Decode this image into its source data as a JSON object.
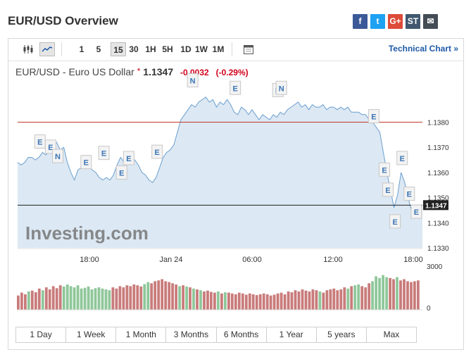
{
  "header": {
    "title": "EUR/USD Overview"
  },
  "share": [
    {
      "name": "facebook-icon",
      "glyph": "f",
      "color": "#3b5998"
    },
    {
      "name": "twitter-icon",
      "glyph": "t",
      "color": "#1da1f2"
    },
    {
      "name": "googleplus-icon",
      "glyph": "G+",
      "color": "#dd4b39"
    },
    {
      "name": "stocktwits-icon",
      "glyph": "ST",
      "color": "#40576f"
    },
    {
      "name": "email-icon",
      "glyph": "✉",
      "color": "#444c55"
    }
  ],
  "toolbar": {
    "intervals": [
      "1",
      "5",
      "15",
      "30",
      "1H",
      "5H",
      "1D",
      "1W",
      "1M"
    ],
    "active_interval": "15",
    "technical_link": "Technical Chart »"
  },
  "quote": {
    "name": "EUR/USD - Euro US Dollar",
    "marker": "*",
    "price": "1.1347",
    "change": "-0.0032",
    "change_pct": "(-0.29%)",
    "down_color": "#d0021b"
  },
  "chart_data": {
    "type": "area",
    "y_ticks": [
      "1.1380",
      "1.1370",
      "1.1360",
      "1.1350",
      "1.1340",
      "1.1330"
    ],
    "ylim": [
      1.133,
      1.1395
    ],
    "x_ticks": [
      "18:00",
      "Jan 24",
      "06:00",
      "12:00",
      "18:00"
    ],
    "last_price_label": "1.1347",
    "reference_line": 1.138,
    "watermark": "Investing.com",
    "series": [
      {
        "values": [
          1.1364,
          1.1363,
          1.1364,
          1.1366,
          1.1366,
          1.1365,
          1.1366,
          1.1368,
          1.1367,
          1.1369,
          1.1371,
          1.1372,
          1.1369,
          1.137,
          1.1364,
          1.136,
          1.1357,
          1.1361,
          1.1362,
          1.1364,
          1.1363,
          1.1361,
          1.136,
          1.1358,
          1.1357,
          1.1358,
          1.1357,
          1.1359,
          1.1363,
          1.1366,
          1.1364,
          1.1367,
          1.1366,
          1.1365,
          1.1363,
          1.136,
          1.1359,
          1.1357,
          1.1356,
          1.1358,
          1.1362,
          1.1366,
          1.1368,
          1.1369,
          1.1371,
          1.1376,
          1.1381,
          1.1383,
          1.1385,
          1.1387,
          1.1386,
          1.1388,
          1.1389,
          1.139,
          1.1388,
          1.1389,
          1.1386,
          1.1388,
          1.1387,
          1.1389,
          1.1387,
          1.1384,
          1.1383,
          1.1386,
          1.1385,
          1.1383,
          1.1385,
          1.1383,
          1.1381,
          1.1383,
          1.1382,
          1.1381,
          1.1383,
          1.1382,
          1.1384,
          1.1383,
          1.1385,
          1.1386,
          1.1387,
          1.1388,
          1.1386,
          1.1387,
          1.1385,
          1.1387,
          1.1386,
          1.1386,
          1.1387,
          1.1385,
          1.1386,
          1.1386,
          1.1385,
          1.1386,
          1.1385,
          1.1386,
          1.1384,
          1.1384,
          1.1384,
          1.1383,
          1.1383,
          1.1381,
          1.138,
          1.1378,
          1.1376,
          1.1368,
          1.136,
          1.1353,
          1.1346,
          1.1351,
          1.136,
          1.1356,
          1.135,
          1.1344,
          1.1342,
          1.1345,
          1.1347
        ]
      }
    ],
    "volume": {
      "y_ticks": [
        "3000",
        "0"
      ],
      "values": [
        1,
        1,
        1,
        0,
        1,
        1,
        1,
        0,
        1,
        1,
        1,
        1,
        1,
        0,
        0,
        0,
        0,
        0,
        0,
        0,
        0,
        0,
        0,
        0,
        0,
        0,
        0,
        1,
        1,
        1,
        1,
        1,
        1,
        1,
        1,
        1,
        0,
        0,
        1,
        1,
        1,
        1,
        1,
        1,
        1,
        1,
        0,
        1,
        0,
        1,
        0,
        1,
        0,
        1,
        1,
        1,
        1,
        0,
        1,
        0,
        1,
        1,
        1,
        1,
        1,
        1,
        1,
        1,
        1,
        1,
        1,
        1,
        1,
        1,
        1,
        1,
        1,
        1,
        1,
        1,
        1,
        1,
        1,
        1,
        1,
        1,
        0,
        1,
        1,
        1,
        1,
        1,
        1,
        1,
        0,
        1,
        0,
        0,
        1,
        1,
        1,
        0,
        0,
        0,
        0,
        0,
        1,
        1,
        0,
        1,
        1,
        1,
        1,
        1,
        1
      ],
      "heights": [
        0.35,
        0.42,
        0.38,
        0.45,
        0.47,
        0.43,
        0.52,
        0.48,
        0.55,
        0.5,
        0.58,
        0.53,
        0.6,
        0.57,
        0.62,
        0.58,
        0.55,
        0.6,
        0.52,
        0.54,
        0.57,
        0.5,
        0.53,
        0.55,
        0.52,
        0.5,
        0.48,
        0.55,
        0.52,
        0.58,
        0.55,
        0.6,
        0.58,
        0.62,
        0.6,
        0.57,
        0.63,
        0.68,
        0.65,
        0.7,
        0.72,
        0.75,
        0.7,
        0.68,
        0.65,
        0.62,
        0.58,
        0.6,
        0.57,
        0.55,
        0.52,
        0.5,
        0.48,
        0.45,
        0.47,
        0.44,
        0.42,
        0.45,
        0.4,
        0.43,
        0.42,
        0.4,
        0.38,
        0.42,
        0.4,
        0.37,
        0.4,
        0.38,
        0.36,
        0.38,
        0.4,
        0.38,
        0.35,
        0.37,
        0.4,
        0.42,
        0.38,
        0.45,
        0.43,
        0.48,
        0.45,
        0.5,
        0.47,
        0.45,
        0.5,
        0.48,
        0.45,
        0.42,
        0.48,
        0.5,
        0.52,
        0.48,
        0.5,
        0.55,
        0.52,
        0.58,
        0.6,
        0.62,
        0.58,
        0.55,
        0.65,
        0.7,
        0.82,
        0.78,
        0.85,
        0.8,
        0.78,
        0.75,
        0.8,
        0.72,
        0.75,
        0.7,
        0.68,
        0.7,
        0.72
      ]
    },
    "markers": [
      {
        "label": "E",
        "i": 6,
        "dy": -22
      },
      {
        "label": "E",
        "i": 9,
        "dy": -4
      },
      {
        "label": "N",
        "i": 11,
        "dy": 20
      },
      {
        "label": "E",
        "i": 19,
        "dy": 0
      },
      {
        "label": "E",
        "i": 24,
        "dy": -38
      },
      {
        "label": "E",
        "i": 29,
        "dy": 22
      },
      {
        "label": "E",
        "i": 31,
        "dy": 5
      },
      {
        "label": "E",
        "i": 39,
        "dy": -36
      },
      {
        "label": "N",
        "i": 49,
        "dy": -34
      },
      {
        "label": "E",
        "i": 61,
        "dy": -34
      },
      {
        "label": "N",
        "i": 73,
        "dy": -38
      },
      {
        "label": "N",
        "i": 74,
        "dy": -34
      },
      {
        "label": "E",
        "i": 100,
        "dy": -8
      },
      {
        "label": "E",
        "i": 103,
        "dy": 25
      },
      {
        "label": "E",
        "i": 104,
        "dy": 25
      },
      {
        "label": "E",
        "i": 106,
        "dy": 20
      },
      {
        "label": "E",
        "i": 108,
        "dy": -20
      },
      {
        "label": "E",
        "i": 110,
        "dy": -5
      },
      {
        "label": "E",
        "i": 112,
        "dy": -8
      }
    ]
  },
  "ranges": [
    "1 Day",
    "1 Week",
    "1 Month",
    "3 Months",
    "6 Months",
    "1 Year",
    "5 years",
    "Max"
  ]
}
